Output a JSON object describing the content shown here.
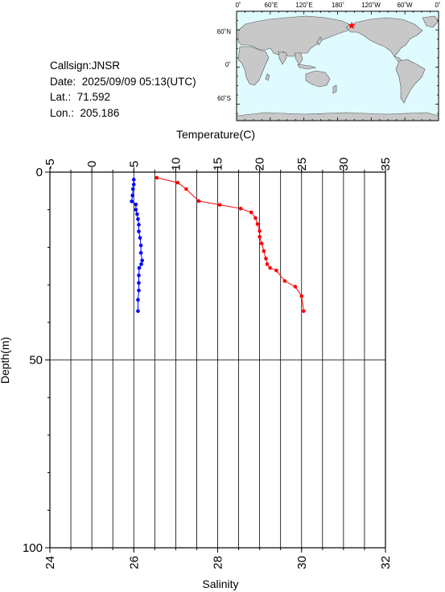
{
  "info": {
    "callsign": "Callsign:JNSR",
    "date": "Date:  2025/09/09 05:13(UTC)",
    "lat": "Lat.:  71.592",
    "lon": "Lon.:  205.186"
  },
  "map": {
    "top_ticks": [
      "0˚",
      "60˚E",
      "120˚E",
      "180˚",
      "120˚W",
      "60˚W",
      "0˚"
    ],
    "left_ticks": [
      "60˚N",
      "0˚",
      "60˚S"
    ],
    "marker": {
      "lon_deg": 205.186,
      "lat_deg": 71.592
    },
    "ocean_color": "#dffbff",
    "land_color": "#c8c8c8",
    "marker_color": "#ff0000"
  },
  "chart_data": {
    "type": "line",
    "xlabel_top": "Temperature(C)",
    "xlabel_bottom": "Salinity",
    "ylabel": "Depth(m)",
    "temperature_ticks": [
      -5,
      0,
      5,
      10,
      15,
      20,
      25,
      30,
      35
    ],
    "salinity_ticks": [
      24,
      26,
      28,
      30,
      32
    ],
    "depth_ticks": [
      0,
      50,
      100
    ],
    "temperature_range": [
      -5,
      35
    ],
    "salinity_range": [
      24,
      32
    ],
    "depth_range": [
      0,
      100
    ],
    "grid": true,
    "series": [
      {
        "color": "#ff0000",
        "axis": "salinity",
        "points": [
          [
            26.55,
            1.5
          ],
          [
            27.05,
            2.8
          ],
          [
            27.25,
            4.5
          ],
          [
            27.55,
            7.7
          ],
          [
            28.05,
            8.7
          ],
          [
            28.55,
            9.7
          ],
          [
            28.8,
            10.7
          ],
          [
            28.9,
            12.2
          ],
          [
            28.95,
            13.8
          ],
          [
            29.0,
            15.7
          ],
          [
            29.0,
            17.2
          ],
          [
            29.05,
            19.0
          ],
          [
            29.1,
            21.0
          ],
          [
            29.15,
            23.0
          ],
          [
            29.18,
            24.5
          ],
          [
            29.25,
            25.5
          ],
          [
            29.4,
            26.2
          ],
          [
            29.6,
            29.0
          ],
          [
            29.85,
            30.5
          ],
          [
            30.0,
            33.0
          ],
          [
            30.05,
            37.0
          ]
        ]
      },
      {
        "color": "#0000ff",
        "axis": "salinity",
        "points": [
          [
            26.0,
            2.0
          ],
          [
            26.0,
            3.3
          ],
          [
            25.98,
            4.5
          ],
          [
            25.97,
            6.2
          ],
          [
            25.95,
            7.8
          ],
          [
            26.05,
            8.6
          ],
          [
            26.05,
            10.0
          ],
          [
            26.08,
            11.2
          ],
          [
            26.1,
            12.5
          ],
          [
            26.12,
            14.0
          ],
          [
            26.12,
            15.8
          ],
          [
            26.15,
            17.5
          ],
          [
            26.17,
            19.5
          ],
          [
            26.17,
            21.5
          ],
          [
            26.2,
            23.5
          ],
          [
            26.18,
            24.5
          ],
          [
            26.13,
            25.5
          ],
          [
            26.12,
            27.5
          ],
          [
            26.12,
            29.5
          ],
          [
            26.12,
            31.5
          ],
          [
            26.1,
            34.0
          ],
          [
            26.1,
            37.0
          ]
        ]
      }
    ]
  }
}
